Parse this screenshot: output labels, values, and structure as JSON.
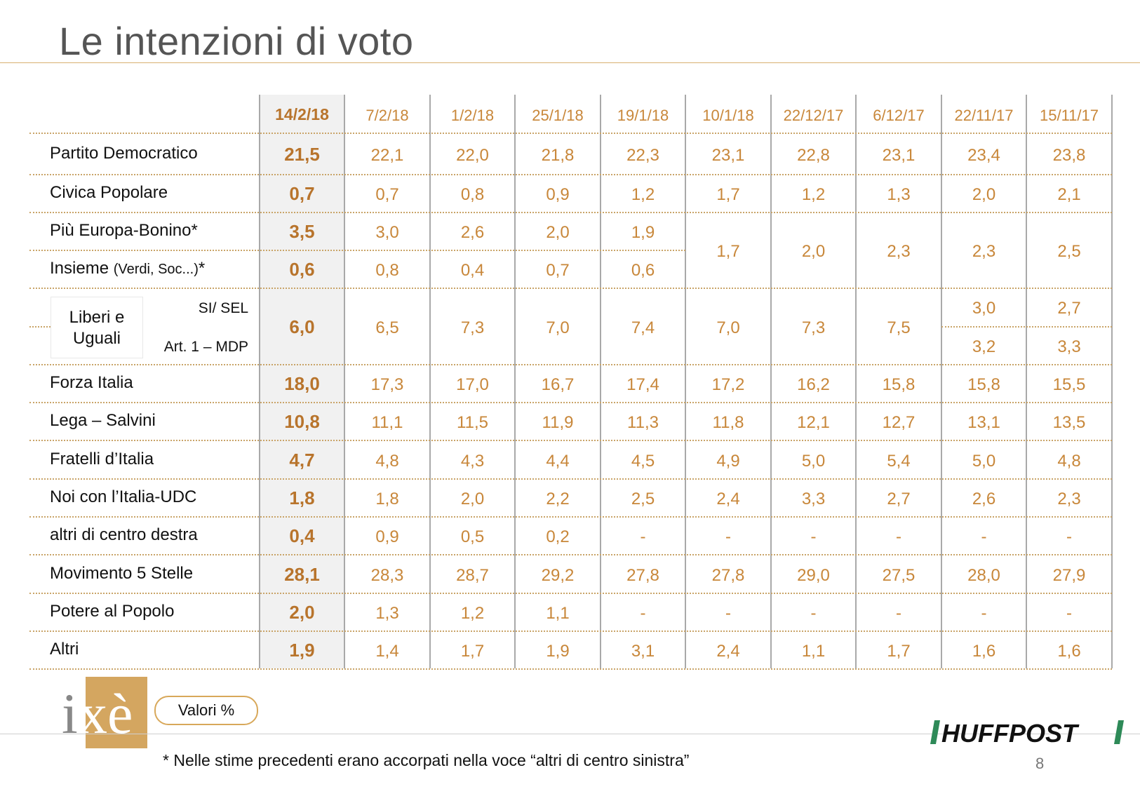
{
  "title": "Le intenzioni di voto",
  "columns": [
    "14/2/18",
    "7/2/18",
    "1/2/18",
    "25/1/18",
    "19/1/18",
    "10/1/18",
    "22/12/17",
    "6/12/17",
    "22/11/17",
    "15/11/17"
  ],
  "rows": [
    {
      "label": "Partito Democratico",
      "values": [
        "21,5",
        "22,1",
        "22,0",
        "21,8",
        "22,3",
        "23,1",
        "22,8",
        "23,1",
        "23,4",
        "23,8"
      ]
    },
    {
      "label": "Civica Popolare",
      "values": [
        "0,7",
        "0,7",
        "0,8",
        "0,9",
        "1,2",
        "1,7",
        "1,2",
        "1,3",
        "2,0",
        "2,1"
      ]
    },
    {
      "label": "Più Europa-Bonino*",
      "values": [
        "3,5",
        "3,0",
        "2,6",
        "2,0",
        "1,9"
      ]
    },
    {
      "label": "Insieme",
      "label_small": "(Verdi, Soc...)",
      "label_suffix": "*",
      "values": [
        "0,6",
        "0,8",
        "0,4",
        "0,7",
        "0,6"
      ]
    },
    {
      "label": "Forza Italia",
      "values": [
        "18,0",
        "17,3",
        "17,0",
        "16,7",
        "17,4",
        "17,2",
        "16,2",
        "15,8",
        "15,8",
        "15,5"
      ]
    },
    {
      "label": "Lega – Salvini",
      "values": [
        "10,8",
        "11,1",
        "11,5",
        "11,9",
        "11,3",
        "11,8",
        "12,1",
        "12,7",
        "13,1",
        "13,5"
      ]
    },
    {
      "label": "Fratelli d’Italia",
      "values": [
        "4,7",
        "4,8",
        "4,3",
        "4,4",
        "4,5",
        "4,9",
        "5,0",
        "5,4",
        "5,0",
        "4,8"
      ]
    },
    {
      "label": "Noi con l’Italia-UDC",
      "values": [
        "1,8",
        "1,8",
        "2,0",
        "2,2",
        "2,5",
        "2,4",
        "3,3",
        "2,7",
        "2,6",
        "2,3"
      ]
    },
    {
      "label": "altri di centro destra",
      "values": [
        "0,4",
        "0,9",
        "0,5",
        "0,2",
        "-",
        "-",
        "-",
        "-",
        "-",
        "-"
      ]
    },
    {
      "label": "Movimento 5 Stelle",
      "values": [
        "28,1",
        "28,3",
        "28,7",
        "29,2",
        "27,8",
        "27,8",
        "29,0",
        "27,5",
        "28,0",
        "27,9"
      ]
    },
    {
      "label": "Potere al Popolo",
      "values": [
        "2,0",
        "1,3",
        "1,2",
        "1,1",
        "-",
        "-",
        "-",
        "-",
        "-",
        "-"
      ]
    },
    {
      "label": "Altri",
      "values": [
        "1,9",
        "1,4",
        "1,7",
        "1,9",
        "3,1",
        "2,4",
        "1,1",
        "1,7",
        "1,6",
        "1,6"
      ]
    }
  ],
  "merged_europa_insieme": [
    "1,7",
    "2,0",
    "2,3",
    "2,3",
    "2,5"
  ],
  "liberi_uguali": {
    "group_label_line1": "Liberi e",
    "group_label_line2": "Uguali",
    "sub1": "SI/ SEL",
    "sub2": "Art. 1 – MDP",
    "combined": [
      "6,0",
      "6,5",
      "7,3",
      "7,0",
      "7,4",
      "7,0",
      "7,3",
      "7,5"
    ],
    "si_sel": [
      "3,0",
      "2,7"
    ],
    "art1_mdp": [
      "3,2",
      "3,3"
    ]
  },
  "logo_text": "ixè",
  "badge": "Valori %",
  "footnote": "* Nelle stime precedenti erano accorpati nella voce “altri di centro sinistra”",
  "page_number": "8",
  "brand": "HUFFPOST",
  "colors": {
    "accent": "#c8873a",
    "accent_dark": "#b8742c",
    "rule": "#c9a468",
    "logo_bg": "#d4a660"
  }
}
